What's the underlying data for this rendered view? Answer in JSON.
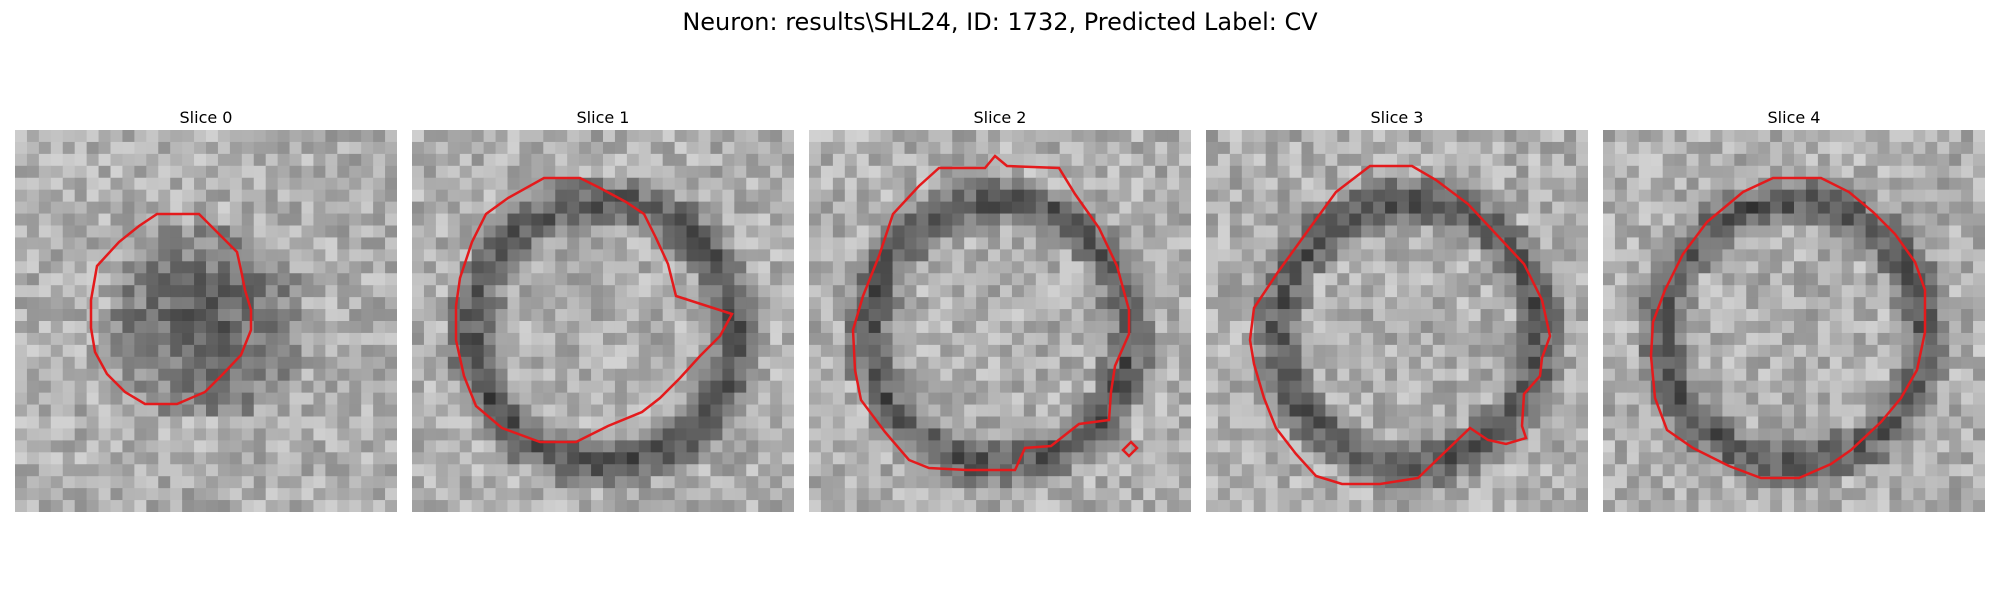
{
  "figure": {
    "title": "Neuron: results\\SHL24, ID: 1732, Predicted Label: CV"
  },
  "colors": {
    "contour": "#e41a1c",
    "background": "#ffffff"
  },
  "slices": [
    {
      "label": "Slice 0",
      "vesicle": "dark blob",
      "contour_color": "#e41a1c"
    },
    {
      "label": "Slice 1",
      "vesicle": "dark ring, light center",
      "contour_color": "#e41a1c"
    },
    {
      "label": "Slice 2",
      "vesicle": "dark ring, light center",
      "contour_color": "#e41a1c"
    },
    {
      "label": "Slice 3",
      "vesicle": "dark ring, light center",
      "contour_color": "#e41a1c"
    },
    {
      "label": "Slice 4",
      "vesicle": "dark ring, light center",
      "contour_color": "#e41a1c"
    }
  ]
}
